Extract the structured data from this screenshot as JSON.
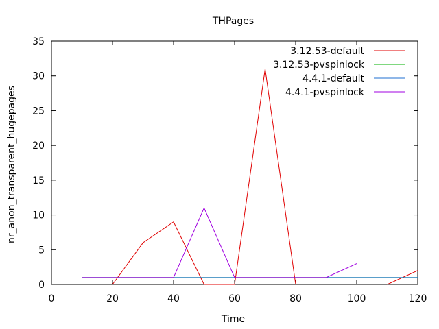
{
  "chart_data": {
    "type": "line",
    "title": "THPages",
    "xlabel": "Time",
    "ylabel": "nr_anon_transparent_hugepages",
    "xlim": [
      0,
      120
    ],
    "ylim": [
      0,
      35
    ],
    "xticks": [
      0,
      20,
      40,
      60,
      80,
      100,
      120
    ],
    "yticks": [
      0,
      5,
      10,
      15,
      20,
      25,
      30,
      35
    ],
    "grid": false,
    "legend_position": "top-right",
    "series": [
      {
        "name": "3.12.53-default",
        "color": "#e00000",
        "points": [
          [
            20,
            0
          ],
          [
            30,
            6
          ],
          [
            40,
            9
          ],
          [
            50,
            0
          ],
          [
            60,
            0
          ],
          [
            70,
            31
          ],
          [
            80,
            0
          ],
          [
            90,
            null
          ],
          [
            100,
            null
          ],
          [
            110,
            0
          ],
          [
            120,
            2
          ]
        ]
      },
      {
        "name": "3.12.53-pvspinlock",
        "color": "#00b000",
        "points": [
          [
            10,
            1
          ],
          [
            20,
            1
          ],
          [
            30,
            1
          ],
          [
            40,
            1
          ],
          [
            50,
            1
          ],
          [
            60,
            1
          ],
          [
            70,
            1
          ],
          [
            80,
            1
          ],
          [
            90,
            1
          ],
          [
            100,
            1
          ],
          [
            110,
            1
          ],
          [
            120,
            1
          ]
        ]
      },
      {
        "name": "4.4.1-default",
        "color": "#1f6fd0",
        "points": [
          [
            10,
            1
          ],
          [
            20,
            1
          ],
          [
            30,
            1
          ],
          [
            40,
            1
          ],
          [
            50,
            1
          ],
          [
            60,
            1
          ],
          [
            70,
            1
          ],
          [
            80,
            1
          ],
          [
            90,
            1
          ],
          [
            100,
            1
          ],
          [
            110,
            1
          ],
          [
            120,
            1
          ]
        ]
      },
      {
        "name": "4.4.1-pvspinlock",
        "color": "#a000e0",
        "points": [
          [
            10,
            1
          ],
          [
            20,
            1
          ],
          [
            30,
            1
          ],
          [
            40,
            1
          ],
          [
            50,
            11
          ],
          [
            60,
            1
          ],
          [
            70,
            1
          ],
          [
            80,
            1
          ],
          [
            90,
            1
          ],
          [
            100,
            3
          ]
        ]
      }
    ]
  }
}
